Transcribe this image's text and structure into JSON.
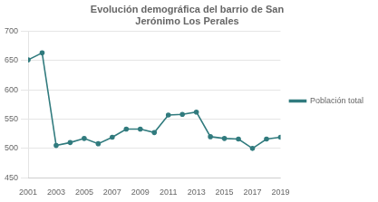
{
  "chart_data": {
    "type": "line",
    "title": "Evolución demográfica del barrio de San\nJerónimo Los Perales",
    "x": [
      2001,
      2002,
      2003,
      2004,
      2005,
      2006,
      2007,
      2008,
      2009,
      2010,
      2011,
      2012,
      2013,
      2014,
      2015,
      2016,
      2017,
      2018,
      2019
    ],
    "series": [
      {
        "name": "Población total",
        "color": "#317B7E",
        "values": [
          651,
          663,
          505,
          510,
          517,
          508,
          519,
          533,
          533,
          527,
          557,
          558,
          562,
          520,
          517,
          516,
          500,
          516,
          519
        ]
      }
    ],
    "xlim": [
      2001,
      2019
    ],
    "xticks": [
      2001,
      2003,
      2005,
      2007,
      2009,
      2011,
      2013,
      2015,
      2017,
      2019
    ],
    "ylim": [
      450,
      700
    ],
    "yticks": [
      450,
      500,
      550,
      600,
      650,
      700
    ],
    "grid": true,
    "legend": "right",
    "marker": "circle"
  }
}
